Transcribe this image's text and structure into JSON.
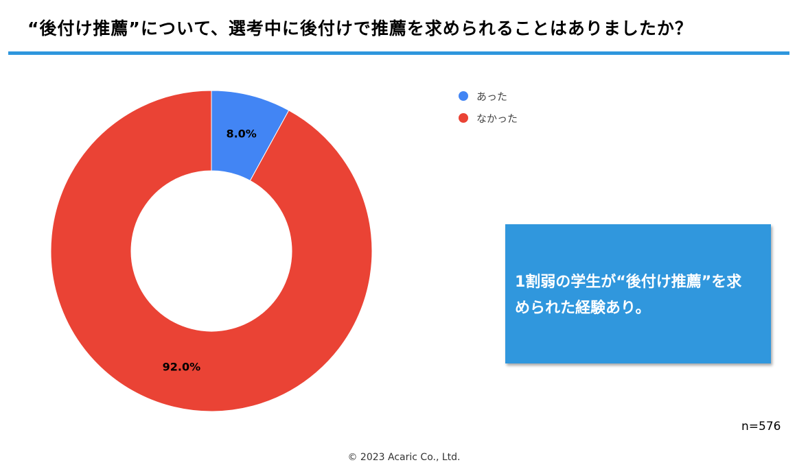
{
  "header": {
    "title": "“後付け推薦”について、選考中に後付けで推薦を求められることはありましたか？",
    "rule_color": "#2e96dd"
  },
  "chart_data": {
    "type": "pie",
    "donut": true,
    "start_angle_deg": 0,
    "direction": "clockwise",
    "categories": [
      "あった",
      "なかった"
    ],
    "values": [
      8.0,
      92.0
    ],
    "value_labels": [
      "8.0%",
      "92.0%"
    ],
    "colors": [
      "#4285f4",
      "#ea4335"
    ],
    "legend_position": "top-right"
  },
  "callout": {
    "text": "1割弱の学生が“後付け推薦”を求められた経験あり。",
    "background": "#3097dd"
  },
  "sample_size": "n=576",
  "footer": {
    "copyright": "© 2023 Acaric Co., Ltd."
  }
}
